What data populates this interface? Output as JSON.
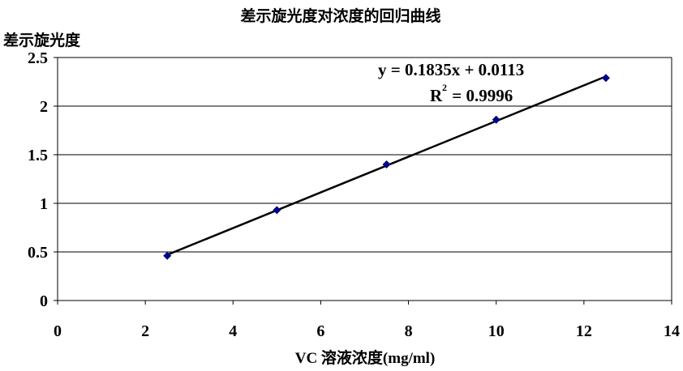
{
  "chart_data": {
    "type": "scatter",
    "title": "差示旋光度对浓度的回归曲线",
    "xlabel": "VC 溶液浓度(mg/ml)",
    "ylabel": "差示旋光度",
    "xlim": [
      0,
      14
    ],
    "ylim": [
      0,
      2.5
    ],
    "xticks": [
      0,
      2,
      4,
      6,
      8,
      10,
      12,
      14
    ],
    "yticks": [
      0,
      0.5,
      1,
      1.5,
      2,
      2.5
    ],
    "xtick_labels": [
      "0",
      "2",
      "4",
      "6",
      "8",
      "10",
      "12",
      "14"
    ],
    "ytick_labels": [
      "0",
      "0.5",
      "1",
      "1.5",
      "2",
      "2.5"
    ],
    "grid": "horizontal",
    "series": [
      {
        "x": [
          2.5,
          5,
          7.5,
          10,
          12.5
        ],
        "y": [
          0.46,
          0.93,
          1.4,
          1.86,
          2.29
        ],
        "marker": "diamond",
        "color": "#00008B"
      }
    ],
    "trendline": {
      "type": "linear",
      "slope": 0.1835,
      "intercept": 0.0113,
      "x_range": [
        2.5,
        12.5
      ],
      "color": "#000000",
      "equation_text": "y = 0.1835x + 0.0113",
      "r2_prefix": "R",
      "r2_exp": "2",
      "r2_value": " = 0.9996"
    }
  }
}
